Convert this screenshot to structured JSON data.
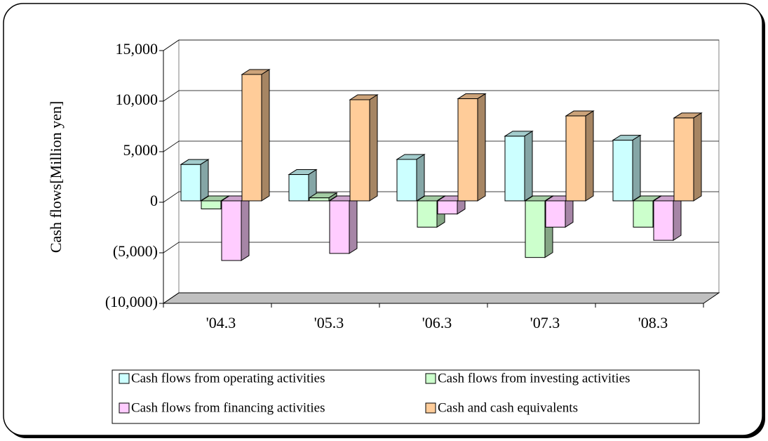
{
  "chart_data": {
    "type": "bar3d",
    "y_label": "Cash flows[Million yen]",
    "categories": [
      "'04.3",
      "'05.3",
      "'06.3",
      "'07.3",
      "'08.3"
    ],
    "series": [
      {
        "name": "Cash flows from operating activities",
        "color": "#ccffff",
        "values": [
          3600,
          2600,
          4100,
          6400,
          6000
        ]
      },
      {
        "name": "Cash flows from investing activities",
        "color": "#ccffcc",
        "values": [
          -800,
          300,
          -2600,
          -5600,
          -2600
        ]
      },
      {
        "name": "Cash flows from financing activities",
        "color": "#ffccff",
        "values": [
          -5900,
          -5200,
          -1300,
          -2600,
          -3900
        ]
      },
      {
        "name": "Cash and cash equivalents",
        "color": "#ffcc99",
        "values": [
          12500,
          10000,
          10100,
          8400,
          8200
        ]
      }
    ],
    "ylim": [
      -10000,
      15000
    ],
    "yticks": [
      {
        "value": -10000,
        "label": "(10,000)"
      },
      {
        "value": -5000,
        "label": "(5,000)"
      },
      0,
      {
        "value": 5000,
        "label": "5,000"
      },
      {
        "value": 10000,
        "label": "10,000"
      },
      {
        "value": 15000,
        "label": "15,000"
      }
    ],
    "grid": true
  }
}
